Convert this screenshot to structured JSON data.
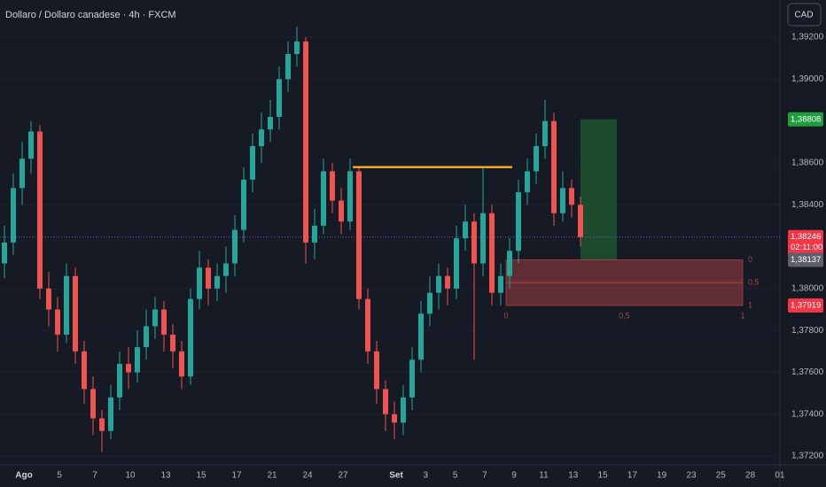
{
  "chart_data": {
    "type": "candlestick",
    "title": "Dollaro / Dollaro canadese · 4h · FXCM",
    "currency_button": "CAD",
    "up_color": "#26a69a",
    "down_color": "#ef5350",
    "open": [
      1.3812,
      1.3822,
      1.3848,
      1.3862,
      1.3875,
      1.38,
      1.379,
      1.3778,
      1.3806,
      1.377,
      1.3752,
      1.3738,
      1.3732,
      1.3748,
      1.3764,
      1.376,
      1.3772,
      1.3782,
      1.379,
      1.3778,
      1.377,
      1.3758,
      1.3795,
      1.381,
      1.38,
      1.3806,
      1.3812,
      1.3828,
      1.3852,
      1.3868,
      1.3876,
      1.3882,
      1.39,
      1.3912,
      1.3918,
      1.3822,
      1.383,
      1.3856,
      1.3842,
      1.3832,
      1.3856,
      1.3795,
      1.377,
      1.3752,
      1.374,
      1.3736,
      1.3748,
      1.3766,
      1.3788,
      1.3798,
      1.3806,
      1.38,
      1.3824,
      1.3832,
      1.3812,
      1.3836,
      1.3798,
      1.3806,
      1.3818,
      1.3846,
      1.3856,
      1.3868,
      1.388,
      1.3836,
      1.3848,
      1.384
    ],
    "high": [
      1.383,
      1.3855,
      1.387,
      1.388,
      1.3878,
      1.3808,
      1.3796,
      1.3812,
      1.381,
      1.3775,
      1.3758,
      1.3742,
      1.3754,
      1.377,
      1.3772,
      1.378,
      1.379,
      1.3796,
      1.3794,
      1.3783,
      1.3775,
      1.38,
      1.3818,
      1.3814,
      1.3812,
      1.382,
      1.3835,
      1.3858,
      1.3874,
      1.3884,
      1.389,
      1.3906,
      1.3918,
      1.3925,
      1.392,
      1.3838,
      1.3862,
      1.386,
      1.3848,
      1.3862,
      1.3858,
      1.38,
      1.3775,
      1.3756,
      1.3746,
      1.3754,
      1.3772,
      1.3794,
      1.3806,
      1.3812,
      1.381,
      1.383,
      1.384,
      1.3836,
      1.3858,
      1.384,
      1.3812,
      1.3824,
      1.3852,
      1.3862,
      1.3874,
      1.389,
      1.3884,
      1.3856,
      1.3852,
      1.3844
    ],
    "low": [
      1.3805,
      1.3816,
      1.384,
      1.3855,
      1.3795,
      1.3782,
      1.377,
      1.3774,
      1.3764,
      1.3745,
      1.373,
      1.3722,
      1.3728,
      1.3742,
      1.3752,
      1.3755,
      1.3766,
      1.3776,
      1.377,
      1.3762,
      1.3752,
      1.3754,
      1.379,
      1.3792,
      1.3794,
      1.3798,
      1.3806,
      1.3822,
      1.3846,
      1.386,
      1.387,
      1.3876,
      1.3894,
      1.3906,
      1.3812,
      1.3814,
      1.3826,
      1.3836,
      1.3826,
      1.3828,
      1.379,
      1.3764,
      1.3745,
      1.3732,
      1.3728,
      1.373,
      1.3742,
      1.376,
      1.3782,
      1.379,
      1.3792,
      1.3795,
      1.3818,
      1.3766,
      1.3806,
      1.3792,
      1.3792,
      1.38,
      1.3812,
      1.384,
      1.385,
      1.3862,
      1.383,
      1.3832,
      1.3834,
      1.382
    ],
    "close": [
      1.3822,
      1.3848,
      1.3862,
      1.3875,
      1.38,
      1.379,
      1.3778,
      1.3806,
      1.377,
      1.3752,
      1.3738,
      1.3732,
      1.3748,
      1.3764,
      1.376,
      1.3772,
      1.3782,
      1.379,
      1.3778,
      1.377,
      1.3758,
      1.3795,
      1.381,
      1.38,
      1.3806,
      1.3812,
      1.3828,
      1.3852,
      1.3868,
      1.3876,
      1.3882,
      1.39,
      1.3912,
      1.3918,
      1.3822,
      1.383,
      1.3856,
      1.3842,
      1.3832,
      1.3856,
      1.3795,
      1.377,
      1.3752,
      1.374,
      1.3736,
      1.3748,
      1.3766,
      1.3788,
      1.3798,
      1.3806,
      1.38,
      1.3824,
      1.3832,
      1.3812,
      1.3836,
      1.3798,
      1.3806,
      1.3818,
      1.3846,
      1.3856,
      1.3868,
      1.388,
      1.3836,
      1.3848,
      1.384,
      1.38246
    ],
    "ylim": [
      1.37158,
      1.39378
    ],
    "yticks": [
      {
        "value": 1.372,
        "label": "1,37200"
      },
      {
        "value": 1.374,
        "label": "1,37400"
      },
      {
        "value": 1.376,
        "label": "1,37600"
      },
      {
        "value": 1.378,
        "label": "1,37800"
      },
      {
        "value": 1.38,
        "label": "1,38000"
      },
      {
        "value": 1.384,
        "label": "1,38400"
      },
      {
        "value": 1.386,
        "label": "1,38600"
      },
      {
        "value": 1.39,
        "label": "1,39000"
      },
      {
        "value": 1.392,
        "label": "1,39200"
      }
    ],
    "x_labels": [
      "Ago",
      "5",
      "7",
      "10",
      "13",
      "15",
      "17",
      "21",
      "24",
      "27",
      "Set",
      "3",
      "5",
      "7",
      "9",
      "11",
      "13",
      "15",
      "17",
      "19",
      "23",
      "25",
      "28",
      "01"
    ],
    "level_line": 1.3858,
    "level_color": "#f5a623",
    "target": {
      "value": 1.38808,
      "label": "1,38808"
    },
    "entry": {
      "value": 1.38137,
      "label": "1,38137"
    },
    "stop": {
      "value": 1.37919,
      "label": "1,37919"
    },
    "last_price": {
      "value": 1.38246,
      "label": "1,38246"
    },
    "countdown": "02:11:00",
    "fib_levels": [
      "0",
      "0,5",
      "1"
    ]
  }
}
